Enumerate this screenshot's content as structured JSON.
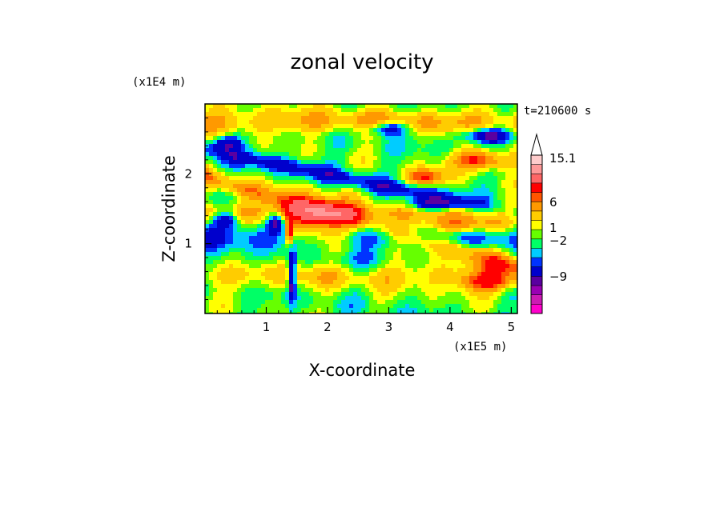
{
  "chart_data": {
    "type": "heatmap",
    "title": "zonal velocity",
    "xlabel": "X-coordinate",
    "ylabel": "Z-coordinate",
    "x_multiplier": "(x1E5 m)",
    "y_multiplier": "(x1E4 m)",
    "time_label": "t=210600 s",
    "xlim": [
      0,
      5.1
    ],
    "ylim": [
      0,
      3
    ],
    "xticks": [
      1,
      2,
      3,
      4,
      5
    ],
    "yticks": [
      1,
      2
    ],
    "colorbar": {
      "colors": [
        "#ff00cc",
        "#cc1ab4",
        "#9900b3",
        "#5a00a0",
        "#0000cc",
        "#0033ff",
        "#00ccff",
        "#00ff66",
        "#66ff00",
        "#ffff00",
        "#ffcc00",
        "#ff9900",
        "#ff5500",
        "#ff0000",
        "#ff6666",
        "#ff9999",
        "#ffcccc"
      ],
      "tick_labels": [
        "15.1",
        "6",
        "1",
        "−2",
        "−9"
      ],
      "max": 15.1
    },
    "field_features": [
      {
        "type": "band",
        "slope": 0.0,
        "offset": 2.75,
        "width": 0.18,
        "value": 3.5
      },
      {
        "type": "band",
        "slope": -0.18,
        "offset": 2.35,
        "width": 0.12,
        "value": -3.5
      },
      {
        "type": "band",
        "slope": -0.25,
        "offset": 1.95,
        "width": 0.15,
        "value": 4.0
      },
      {
        "type": "band",
        "slope": 0.0,
        "offset": 1.45,
        "width": 0.15,
        "value": 3.5
      },
      {
        "type": "band",
        "slope": 0.0,
        "offset": 1.1,
        "width": 0.18,
        "value": -2.5
      },
      {
        "type": "band",
        "slope": 0.0,
        "offset": 0.55,
        "width": 0.2,
        "value": 2.5
      },
      {
        "type": "blob",
        "x": 1.8,
        "z": 1.35,
        "rx": 0.5,
        "rz": 0.35,
        "value": 6.5
      },
      {
        "type": "blob",
        "x": 1.42,
        "z": 0.55,
        "rx": 0.06,
        "rz": 0.35,
        "value": -8
      },
      {
        "type": "blob",
        "x": 1.38,
        "z": 1.15,
        "rx": 0.05,
        "rz": 0.18,
        "value": 8
      },
      {
        "type": "blob",
        "x": 0.35,
        "z": 1.35,
        "rx": 0.2,
        "rz": 0.12,
        "value": -6
      },
      {
        "type": "blob",
        "x": 1.15,
        "z": 1.3,
        "rx": 0.15,
        "rz": 0.15,
        "value": -7
      },
      {
        "type": "blob",
        "x": 0.35,
        "z": 2.45,
        "rx": 0.25,
        "rz": 0.1,
        "value": -5
      },
      {
        "type": "blob",
        "x": 3.0,
        "z": 2.65,
        "rx": 0.35,
        "rz": 0.1,
        "value": -6
      },
      {
        "type": "blob",
        "x": 4.6,
        "z": 2.55,
        "rx": 0.4,
        "rz": 0.1,
        "value": -7
      },
      {
        "type": "blob",
        "x": 3.7,
        "z": 1.55,
        "rx": 0.45,
        "rz": 0.1,
        "value": -6
      },
      {
        "type": "blob",
        "x": 4.5,
        "z": 2.2,
        "rx": 0.5,
        "rz": 0.14,
        "value": 7
      },
      {
        "type": "blob",
        "x": 3.6,
        "z": 1.95,
        "rx": 0.35,
        "rz": 0.12,
        "value": 6
      },
      {
        "type": "blob",
        "x": 4.2,
        "z": 1.25,
        "rx": 0.6,
        "rz": 0.12,
        "value": 5
      },
      {
        "type": "blob",
        "x": 4.6,
        "z": 0.45,
        "rx": 0.5,
        "rz": 0.15,
        "value": 5
      },
      {
        "type": "blob",
        "x": 0.5,
        "z": 0.7,
        "rx": 0.4,
        "rz": 0.2,
        "value": -1.5
      },
      {
        "type": "blob",
        "x": 2.5,
        "z": 0.75,
        "rx": 0.6,
        "rz": 0.15,
        "value": -1.5
      }
    ]
  }
}
